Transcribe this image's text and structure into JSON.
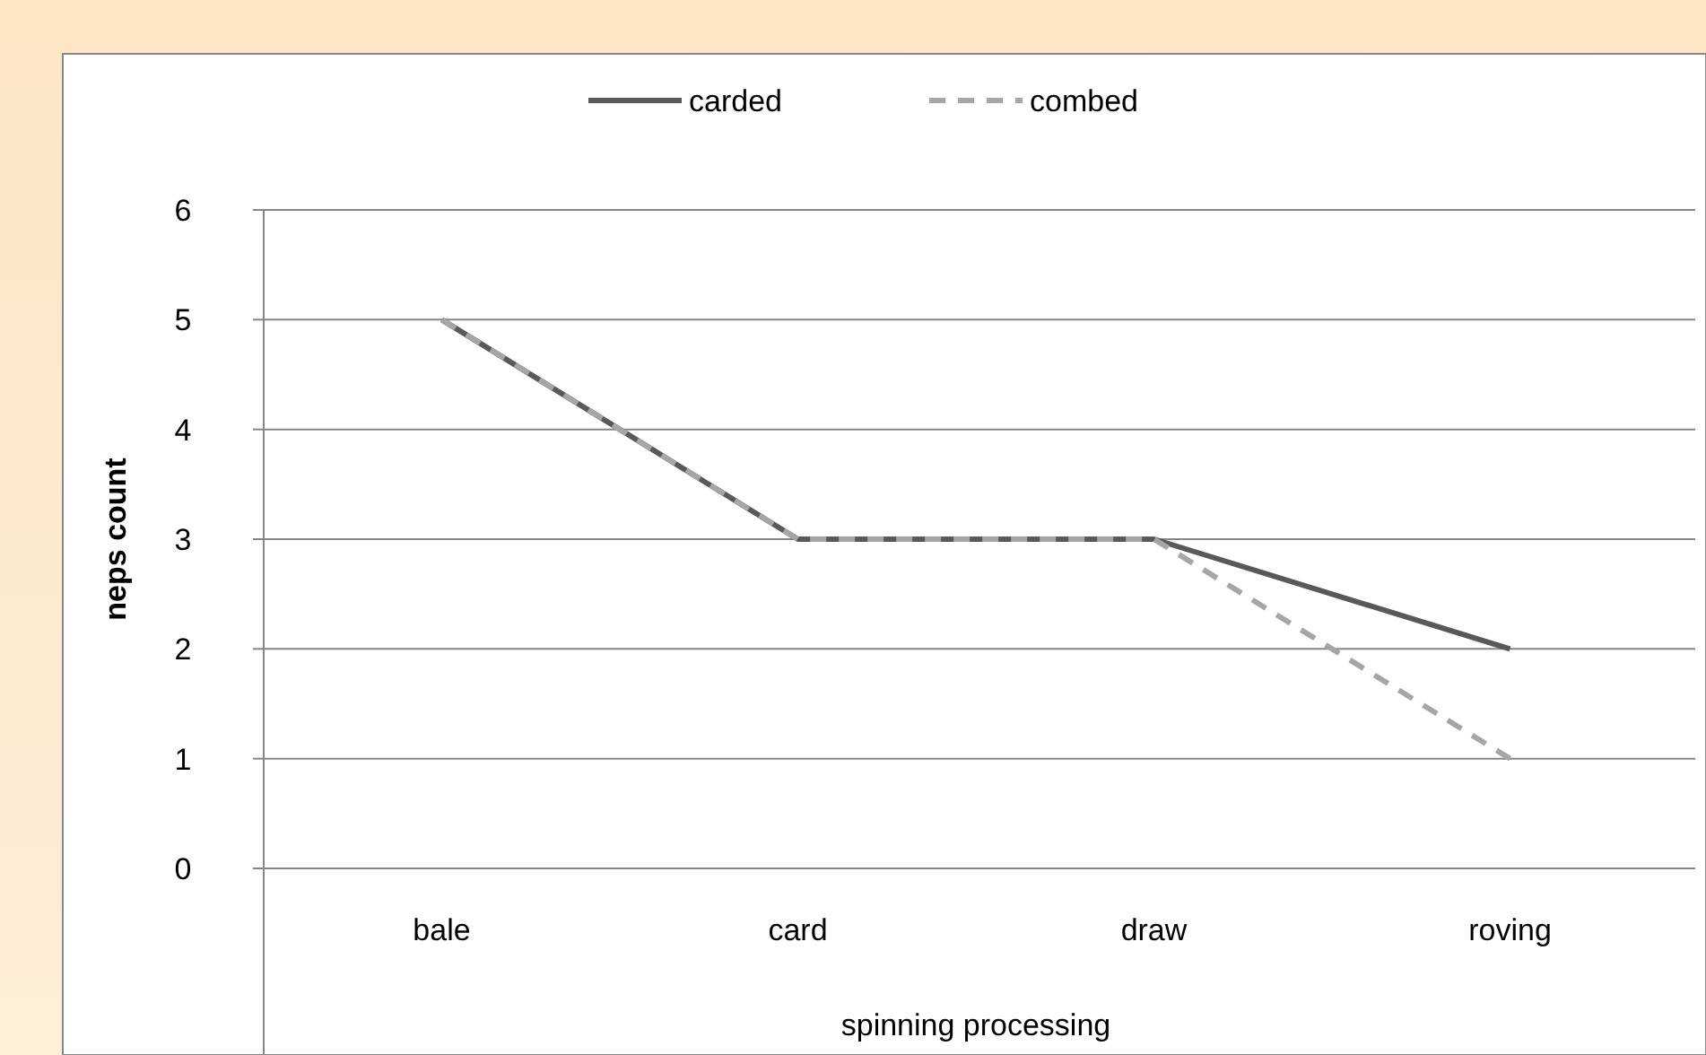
{
  "chart_data": {
    "type": "line",
    "xlabel": "spinning processing",
    "ylabel": "neps count",
    "categories": [
      "bale",
      "card",
      "draw",
      "roving"
    ],
    "series": [
      {
        "name": "carded",
        "color": "#595959",
        "line_style": "solid",
        "values": [
          5,
          3,
          3,
          2
        ]
      },
      {
        "name": "combed",
        "color": "#a6a6a6",
        "line_style": "dashed",
        "values": [
          5,
          3,
          3,
          1
        ]
      }
    ],
    "ylim": [
      0,
      6
    ],
    "yticks": [
      0,
      1,
      2,
      3,
      4,
      5,
      6
    ],
    "grid": "y",
    "legend": "top",
    "marker": "none"
  }
}
